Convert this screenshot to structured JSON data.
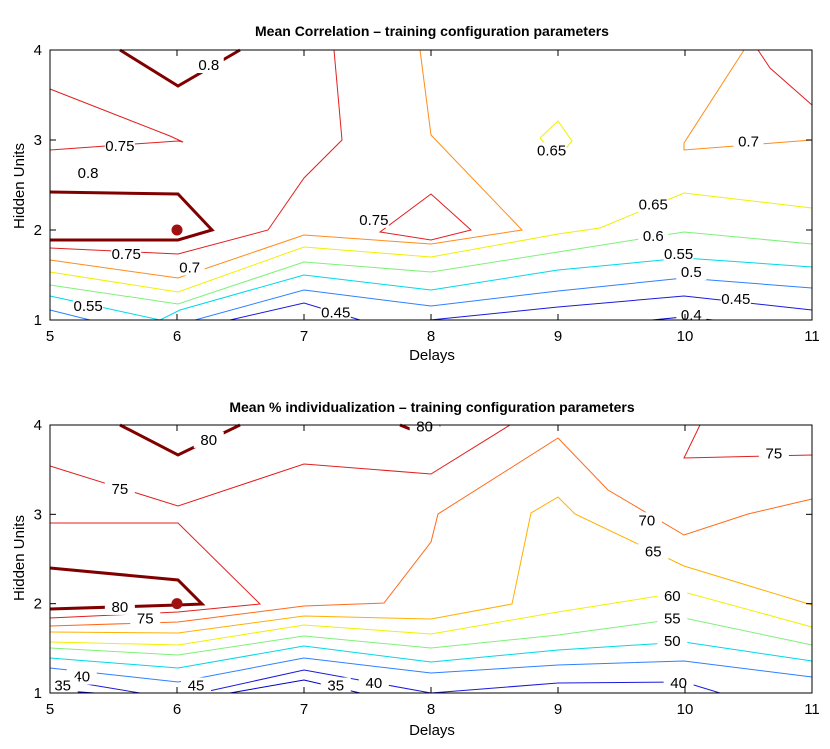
{
  "chart_data": [
    {
      "type": "contour",
      "title": "Mean Correlation – training configuration parameters",
      "xlabel": "Delays",
      "ylabel": "Hidden Units",
      "xlim": [
        5,
        11
      ],
      "ylim": [
        1,
        4
      ],
      "x_ticks": [
        "5",
        "6",
        "7",
        "8",
        "9",
        "10",
        "11"
      ],
      "y_ticks": [
        "1",
        "2",
        "3",
        "4"
      ],
      "grid": false,
      "contour_levels": [
        "0.4",
        "0.45",
        "0.5",
        "0.55",
        "0.6",
        "0.65",
        "0.7",
        "0.75",
        "0.8"
      ],
      "contour_labels": [
        {
          "text": "0.8",
          "x": 5.3,
          "y": 2.6
        },
        {
          "text": "0.8",
          "x": 6.25,
          "y": 3.8
        },
        {
          "text": "0.75",
          "x": 5.55,
          "y": 2.9
        },
        {
          "text": "0.75",
          "x": 5.6,
          "y": 1.7
        },
        {
          "text": "0.75",
          "x": 7.55,
          "y": 2.08
        },
        {
          "text": "0.7",
          "x": 6.1,
          "y": 1.55
        },
        {
          "text": "0.7",
          "x": 10.5,
          "y": 2.95
        },
        {
          "text": "0.65",
          "x": 8.95,
          "y": 2.85
        },
        {
          "text": "0.65",
          "x": 9.75,
          "y": 2.25
        },
        {
          "text": "0.6",
          "x": 9.75,
          "y": 1.9
        },
        {
          "text": "0.55",
          "x": 9.95,
          "y": 1.7
        },
        {
          "text": "0.55",
          "x": 5.3,
          "y": 1.12
        },
        {
          "text": "0.5",
          "x": 10.05,
          "y": 1.5
        },
        {
          "text": "0.45",
          "x": 10.4,
          "y": 1.2
        },
        {
          "text": "0.45",
          "x": 7.25,
          "y": 1.05
        },
        {
          "text": "0.4",
          "x": 10.05,
          "y": 1.02
        }
      ],
      "highlight_point": {
        "x": 6,
        "y": 2
      }
    },
    {
      "type": "contour",
      "title": "Mean % individualization – training configuration parameters",
      "xlabel": "Delays",
      "ylabel": "Hidden Units",
      "xlim": [
        5,
        11
      ],
      "ylim": [
        1,
        4
      ],
      "x_ticks": [
        "5",
        "6",
        "7",
        "8",
        "9",
        "10",
        "11"
      ],
      "y_ticks": [
        "1",
        "2",
        "3",
        "4"
      ],
      "grid": false,
      "contour_levels": [
        "35",
        "40",
        "45",
        "50",
        "55",
        "60",
        "65",
        "70",
        "75",
        "80"
      ],
      "contour_labels": [
        {
          "text": "80",
          "x": 6.25,
          "y": 3.8
        },
        {
          "text": "80",
          "x": 7.95,
          "y": 3.95
        },
        {
          "text": "80",
          "x": 5.55,
          "y": 1.93
        },
        {
          "text": "75",
          "x": 5.55,
          "y": 3.25
        },
        {
          "text": "75",
          "x": 5.75,
          "y": 1.8
        },
        {
          "text": "75",
          "x": 10.7,
          "y": 3.65
        },
        {
          "text": "70",
          "x": 9.7,
          "y": 2.9
        },
        {
          "text": "65",
          "x": 9.75,
          "y": 2.55
        },
        {
          "text": "60",
          "x": 9.9,
          "y": 2.05
        },
        {
          "text": "55",
          "x": 9.9,
          "y": 1.8
        },
        {
          "text": "50",
          "x": 9.9,
          "y": 1.55
        },
        {
          "text": "45",
          "x": 6.15,
          "y": 1.05
        },
        {
          "text": "40",
          "x": 5.25,
          "y": 1.15
        },
        {
          "text": "40",
          "x": 7.55,
          "y": 1.08
        },
        {
          "text": "40",
          "x": 9.95,
          "y": 1.08
        },
        {
          "text": "35",
          "x": 5.1,
          "y": 1.05
        },
        {
          "text": "35",
          "x": 7.25,
          "y": 1.05
        }
      ],
      "highlight_point": {
        "x": 6,
        "y": 2
      }
    }
  ]
}
